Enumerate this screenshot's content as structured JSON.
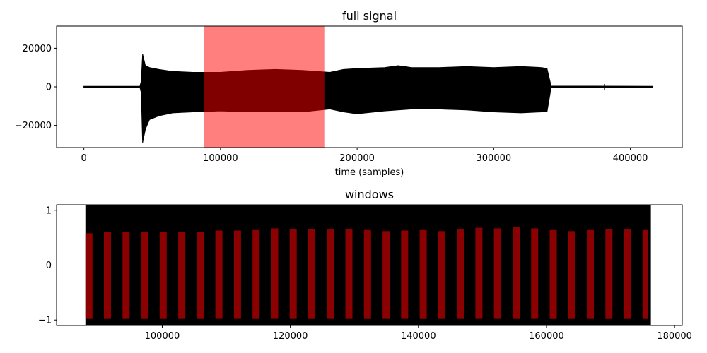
{
  "chart_data": [
    {
      "type": "line",
      "title": "full signal",
      "xlabel": "time (samples)",
      "ylabel": "",
      "xlim": [
        -20000,
        438000
      ],
      "ylim": [
        -31500,
        31500
      ],
      "xticks": [
        0,
        100000,
        200000,
        300000,
        400000
      ],
      "xtick_labels": [
        "0",
        "100000",
        "200000",
        "300000",
        "400000"
      ],
      "yticks": [
        20000,
        0,
        -20000
      ],
      "ytick_labels": [
        "20000",
        "0",
        "−20000"
      ],
      "signal_color": "#000000",
      "highlight": {
        "x_start": 88000,
        "x_end": 176000,
        "color": "#ff0000",
        "opacity": 0.5
      },
      "series": [
        {
          "style": "envelope",
          "x": [
            0,
            41000,
            42000,
            43000,
            45000,
            48000,
            55000,
            65000,
            80000,
            100000,
            120000,
            140000,
            160000,
            180000,
            190000,
            200000,
            220000,
            230000,
            240000,
            260000,
            280000,
            300000,
            320000,
            335000,
            339000,
            342000,
            416000
          ],
          "upper": [
            300,
            300,
            3000,
            17000,
            11000,
            10000,
            9000,
            8000,
            7500,
            7500,
            8500,
            9000,
            8500,
            7500,
            9000,
            9500,
            10000,
            11000,
            10000,
            10000,
            10500,
            10000,
            10500,
            10000,
            9500,
            400,
            300
          ],
          "lower": [
            -300,
            -300,
            -3000,
            -29000,
            -22000,
            -17000,
            -15000,
            -13500,
            -13000,
            -12500,
            -13000,
            -13000,
            -13000,
            -11500,
            -13000,
            -14000,
            -12500,
            -12000,
            -11500,
            -11500,
            -12000,
            -13000,
            -13500,
            -13000,
            -13000,
            -400,
            -300
          ]
        }
      ],
      "spikes": [
        {
          "x": 42000,
          "amplitude": 1500
        },
        {
          "x": 381000,
          "amplitude": 1500
        }
      ]
    },
    {
      "type": "line",
      "title": "windows",
      "xlabel": "",
      "ylabel": "",
      "xlim": [
        83500,
        181200
      ],
      "ylim": [
        -1.1,
        1.1
      ],
      "xticks": [
        100000,
        120000,
        140000,
        160000,
        180000
      ],
      "xtick_labels": [
        "100000",
        "120000",
        "140000",
        "160000",
        "180000"
      ],
      "yticks": [
        1,
        0,
        -1
      ],
      "ytick_labels": [
        "1",
        "0",
        "−1"
      ],
      "background_block": {
        "x_start": 88000,
        "x_end": 176300,
        "y_min": -1.1,
        "y_max": 1.1,
        "color": "#000000"
      },
      "window_color": "#8b0000",
      "windows": [
        {
          "x_start": 88000,
          "x_end": 89100,
          "top": 0.58,
          "bottom": -0.98
        },
        {
          "x_start": 90900,
          "x_end": 92000,
          "top": 0.6,
          "bottom": -0.98
        },
        {
          "x_start": 93800,
          "x_end": 94900,
          "top": 0.61,
          "bottom": -0.98
        },
        {
          "x_start": 96700,
          "x_end": 97800,
          "top": 0.6,
          "bottom": -0.98
        },
        {
          "x_start": 99600,
          "x_end": 100700,
          "top": 0.6,
          "bottom": -0.98
        },
        {
          "x_start": 102500,
          "x_end": 103600,
          "top": 0.6,
          "bottom": -0.98
        },
        {
          "x_start": 105400,
          "x_end": 106500,
          "top": 0.61,
          "bottom": -0.98
        },
        {
          "x_start": 108300,
          "x_end": 109400,
          "top": 0.63,
          "bottom": -0.98
        },
        {
          "x_start": 111200,
          "x_end": 112300,
          "top": 0.63,
          "bottom": -0.98
        },
        {
          "x_start": 114100,
          "x_end": 115200,
          "top": 0.64,
          "bottom": -0.98
        },
        {
          "x_start": 117000,
          "x_end": 118100,
          "top": 0.67,
          "bottom": -0.98
        },
        {
          "x_start": 119900,
          "x_end": 121000,
          "top": 0.65,
          "bottom": -0.98
        },
        {
          "x_start": 122800,
          "x_end": 123900,
          "top": 0.65,
          "bottom": -0.98
        },
        {
          "x_start": 125700,
          "x_end": 126800,
          "top": 0.65,
          "bottom": -0.98
        },
        {
          "x_start": 128600,
          "x_end": 129700,
          "top": 0.66,
          "bottom": -0.98
        },
        {
          "x_start": 131500,
          "x_end": 132600,
          "top": 0.64,
          "bottom": -0.98
        },
        {
          "x_start": 134400,
          "x_end": 135500,
          "top": 0.62,
          "bottom": -0.98
        },
        {
          "x_start": 137300,
          "x_end": 138400,
          "top": 0.63,
          "bottom": -0.98
        },
        {
          "x_start": 140200,
          "x_end": 141300,
          "top": 0.64,
          "bottom": -0.98
        },
        {
          "x_start": 143100,
          "x_end": 144200,
          "top": 0.62,
          "bottom": -0.98
        },
        {
          "x_start": 146000,
          "x_end": 147100,
          "top": 0.65,
          "bottom": -0.98
        },
        {
          "x_start": 148900,
          "x_end": 150000,
          "top": 0.68,
          "bottom": -0.98
        },
        {
          "x_start": 151800,
          "x_end": 152900,
          "top": 0.67,
          "bottom": -0.98
        },
        {
          "x_start": 154700,
          "x_end": 155800,
          "top": 0.69,
          "bottom": -0.98
        },
        {
          "x_start": 157600,
          "x_end": 158700,
          "top": 0.67,
          "bottom": -0.98
        },
        {
          "x_start": 160500,
          "x_end": 161600,
          "top": 0.64,
          "bottom": -0.98
        },
        {
          "x_start": 163400,
          "x_end": 164500,
          "top": 0.62,
          "bottom": -0.98
        },
        {
          "x_start": 166300,
          "x_end": 167400,
          "top": 0.64,
          "bottom": -0.98
        },
        {
          "x_start": 169200,
          "x_end": 170300,
          "top": 0.65,
          "bottom": -0.98
        },
        {
          "x_start": 172100,
          "x_end": 173200,
          "top": 0.66,
          "bottom": -0.98
        },
        {
          "x_start": 175000,
          "x_end": 175900,
          "top": 0.64,
          "bottom": -0.98
        }
      ]
    }
  ]
}
